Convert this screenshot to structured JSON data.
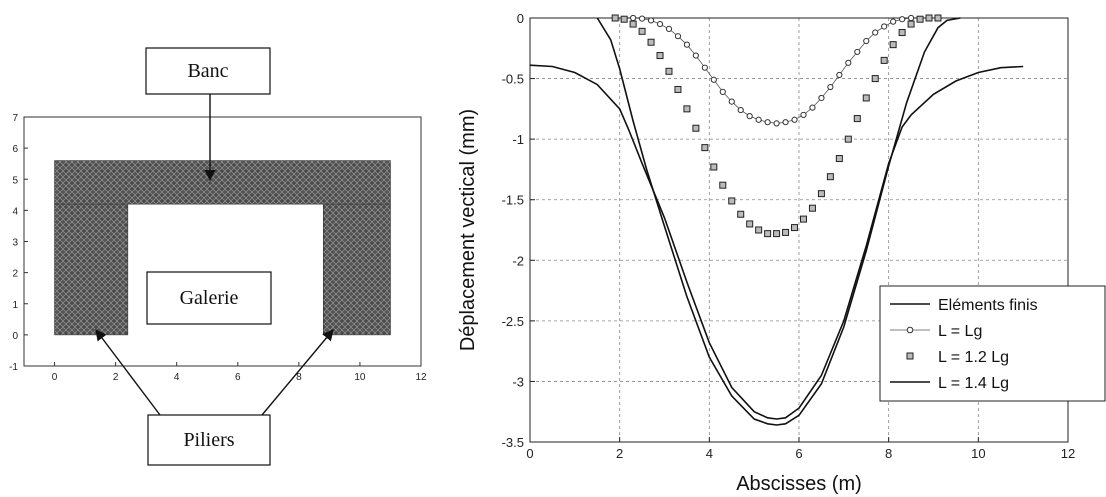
{
  "chart_data": [
    {
      "type": "diagram",
      "xlim": [
        -1,
        12
      ],
      "ylim": [
        -1,
        7
      ],
      "xticks": [
        "0",
        "2",
        "4",
        "6",
        "8",
        "10",
        "12"
      ],
      "yticks": [
        "-1",
        "0",
        "1",
        "2",
        "3",
        "4",
        "5",
        "6",
        "7"
      ],
      "geometry": {
        "banc": [
          0,
          4.2,
          11,
          5.6
        ],
        "pilier_gauche": [
          0,
          0,
          2.4,
          4.2
        ],
        "pilier_droit": [
          8.8,
          0,
          11,
          4.2
        ],
        "galerie": [
          2.4,
          0,
          8.8,
          4.2
        ]
      },
      "labels": {
        "banc": "Banc",
        "galerie": "Galerie",
        "piliers": "Piliers"
      }
    },
    {
      "type": "line",
      "xlabel": "Abscisses (m)",
      "ylabel": "Déplacement vectical (mm)",
      "xlim": [
        0,
        12
      ],
      "ylim": [
        -3.5,
        0
      ],
      "xticks": [
        "0",
        "2",
        "4",
        "6",
        "8",
        "10",
        "12"
      ],
      "yticks": [
        "0",
        "-0.5",
        "-1",
        "-1.5",
        "-2",
        "-2.5",
        "-3",
        "-3.5"
      ],
      "grid": true,
      "legend_position": "bottom-right",
      "series": [
        {
          "name": "Eléments finis",
          "style": "line",
          "x": [
            0,
            0.5,
            1.0,
            1.5,
            2.0,
            2.2,
            2.5,
            3.0,
            3.5,
            4.0,
            4.5,
            5.0,
            5.3,
            5.5,
            5.7,
            6.0,
            6.5,
            7.0,
            7.5,
            8.0,
            8.3,
            8.5,
            9.0,
            9.5,
            10.0,
            10.5,
            11.0
          ],
          "y": [
            -0.39,
            -0.4,
            -0.45,
            -0.55,
            -0.75,
            -0.92,
            -1.2,
            -1.65,
            -2.18,
            -2.68,
            -3.05,
            -3.25,
            -3.3,
            -3.31,
            -3.3,
            -3.22,
            -2.95,
            -2.5,
            -1.88,
            -1.2,
            -0.9,
            -0.8,
            -0.63,
            -0.52,
            -0.45,
            -0.41,
            -0.4
          ]
        },
        {
          "name": "L = Lg",
          "style": "circle",
          "x": [
            2.3,
            2.5,
            2.7,
            2.9,
            3.1,
            3.3,
            3.5,
            3.7,
            3.9,
            4.1,
            4.3,
            4.5,
            4.7,
            4.9,
            5.1,
            5.3,
            5.5,
            5.7,
            5.9,
            6.1,
            6.3,
            6.5,
            6.7,
            6.9,
            7.1,
            7.3,
            7.5,
            7.7,
            7.9,
            8.1,
            8.3,
            8.5
          ],
          "y": [
            0,
            -0.005,
            -0.02,
            -0.05,
            -0.09,
            -0.15,
            -0.22,
            -0.31,
            -0.41,
            -0.51,
            -0.61,
            -0.69,
            -0.76,
            -0.81,
            -0.84,
            -0.86,
            -0.87,
            -0.86,
            -0.84,
            -0.8,
            -0.74,
            -0.66,
            -0.57,
            -0.47,
            -0.37,
            -0.28,
            -0.19,
            -0.12,
            -0.07,
            -0.03,
            -0.01,
            0
          ]
        },
        {
          "name": "L = 1.2 Lg",
          "style": "square",
          "x": [
            1.9,
            2.1,
            2.3,
            2.5,
            2.7,
            2.9,
            3.1,
            3.3,
            3.5,
            3.7,
            3.9,
            4.1,
            4.3,
            4.5,
            4.7,
            4.9,
            5.1,
            5.3,
            5.5,
            5.7,
            5.9,
            6.1,
            6.3,
            6.5,
            6.7,
            6.9,
            7.1,
            7.3,
            7.5,
            7.7,
            7.9,
            8.1,
            8.3,
            8.5,
            8.7,
            8.9,
            9.1
          ],
          "y": [
            0,
            -0.01,
            -0.05,
            -0.11,
            -0.2,
            -0.31,
            -0.44,
            -0.59,
            -0.75,
            -0.91,
            -1.07,
            -1.23,
            -1.38,
            -1.51,
            -1.62,
            -1.7,
            -1.75,
            -1.78,
            -1.78,
            -1.77,
            -1.73,
            -1.66,
            -1.57,
            -1.45,
            -1.31,
            -1.16,
            -1.0,
            -0.83,
            -0.66,
            -0.5,
            -0.35,
            -0.22,
            -0.12,
            -0.05,
            -0.01,
            0,
            0
          ]
        },
        {
          "name": "L = 1.4 Lg",
          "style": "line",
          "x": [
            1.5,
            1.8,
            2.0,
            2.3,
            2.6,
            3.0,
            3.5,
            4.0,
            4.5,
            5.0,
            5.3,
            5.5,
            5.7,
            6.0,
            6.5,
            7.0,
            7.5,
            8.0,
            8.4,
            8.8,
            9.1,
            9.3,
            9.6
          ],
          "y": [
            0,
            -0.18,
            -0.42,
            -0.85,
            -1.25,
            -1.72,
            -2.3,
            -2.8,
            -3.12,
            -3.31,
            -3.35,
            -3.36,
            -3.35,
            -3.28,
            -3.02,
            -2.55,
            -1.92,
            -1.22,
            -0.7,
            -0.28,
            -0.08,
            -0.02,
            0
          ]
        }
      ]
    }
  ]
}
